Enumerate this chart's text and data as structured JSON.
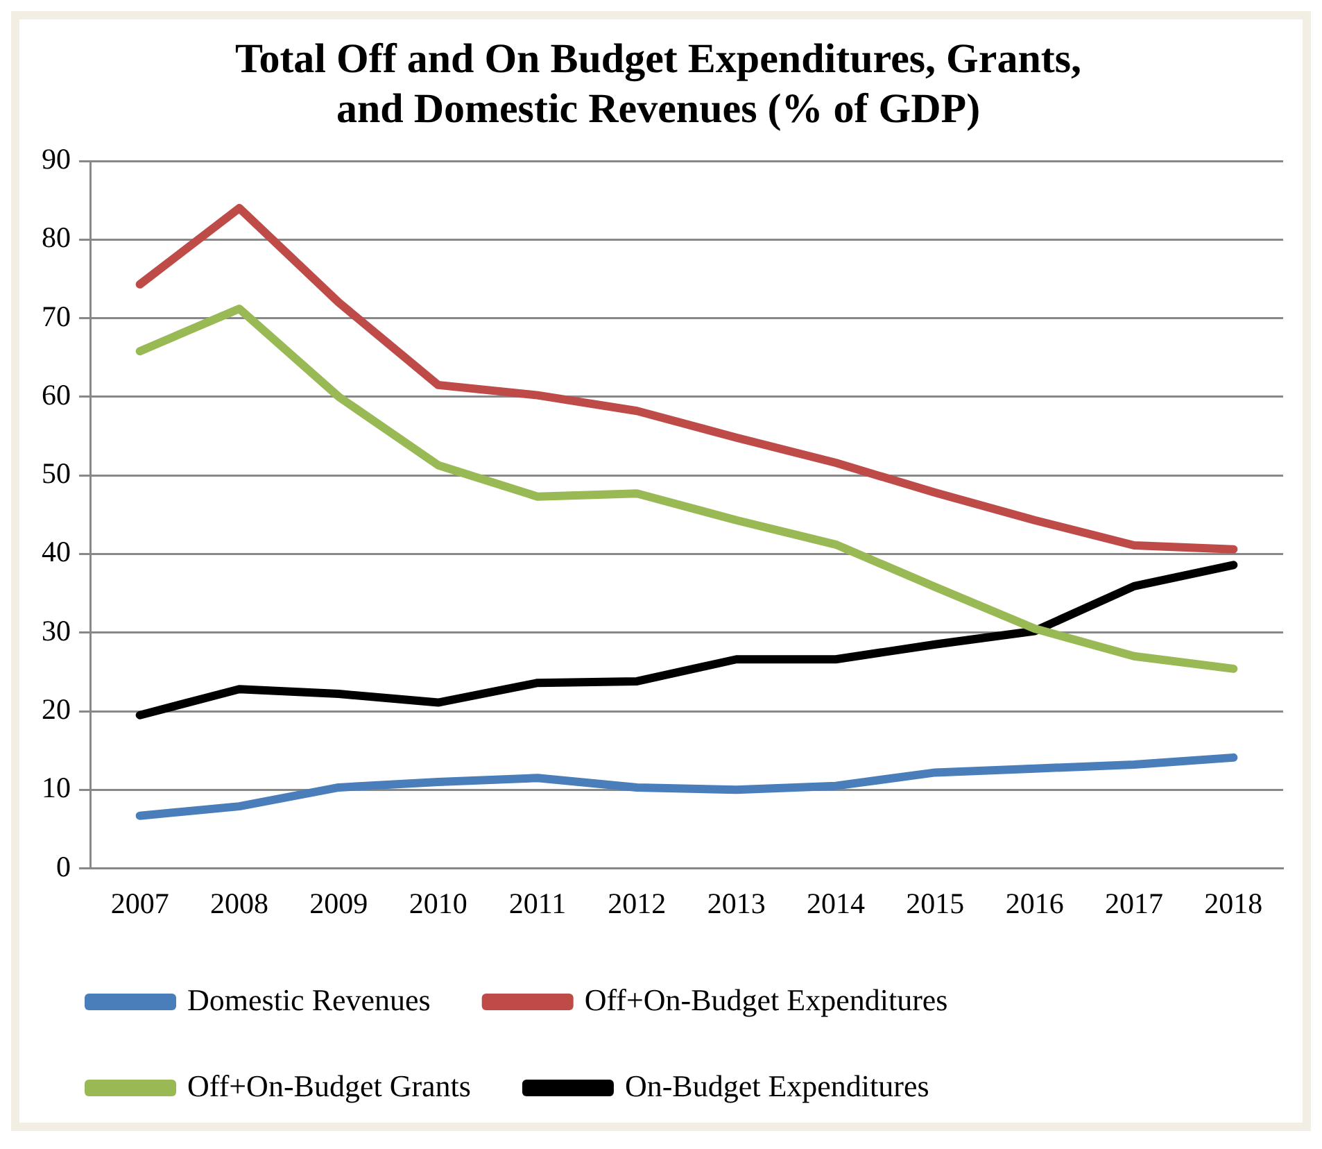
{
  "chart_data": {
    "type": "line",
    "title": [
      "Total Off and On Budget Expenditures, Grants,",
      "and Domestic Revenues (% of GDP)"
    ],
    "categories": [
      "2007",
      "2008",
      "2009",
      "2010",
      "2011",
      "2012",
      "2013",
      "2014",
      "2015",
      "2016",
      "2017",
      "2018"
    ],
    "series": [
      {
        "name": "Domestic Revenues",
        "color": "#4a7ebb",
        "values": [
          6.7,
          7.9,
          10.3,
          11,
          11.5,
          10.3,
          10,
          10.5,
          12.2,
          12.7,
          13.2,
          14.1
        ]
      },
      {
        "name": "Off+On-Budget Expenditures",
        "color": "#be4b48",
        "values": [
          74.3,
          84,
          72,
          61.5,
          60.2,
          58.2,
          54.8,
          51.6,
          47.8,
          44.3,
          41.1,
          40.6
        ]
      },
      {
        "name": "Off+On-Budget Grants",
        "color": "#98b954",
        "values": [
          65.8,
          71.2,
          60,
          51.3,
          47.3,
          47.7,
          44.3,
          41.2,
          35.8,
          30.5,
          27,
          25.4
        ]
      },
      {
        "name": "On-Budget Expenditures",
        "color": "#000000",
        "values": [
          19.5,
          22.8,
          22.2,
          21.1,
          23.6,
          23.8,
          26.6,
          26.6,
          28.5,
          30.2,
          35.9,
          38.6
        ]
      }
    ],
    "ylim": [
      0,
      90
    ],
    "yticks": [
      0,
      10,
      20,
      30,
      40,
      50,
      60,
      70,
      80,
      90
    ],
    "grid": "y",
    "legend": "bottom",
    "marker": "none",
    "line_style": "solid"
  }
}
